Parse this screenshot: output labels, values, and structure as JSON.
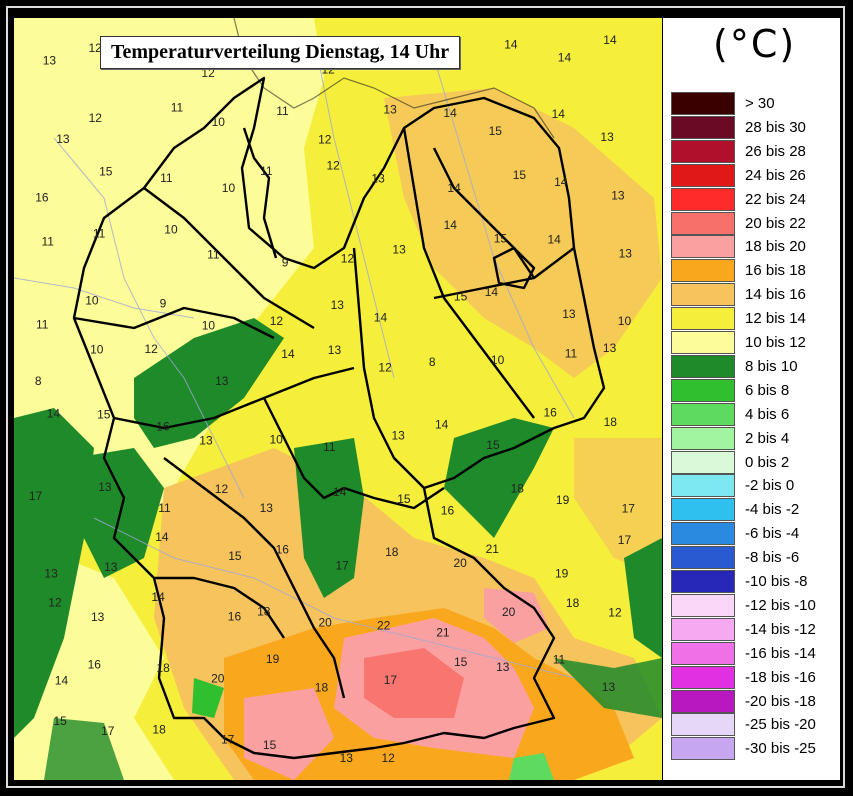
{
  "title": "Temperaturverteilung Dienstag, 14 Uhr",
  "legend": {
    "unit": "(°C)",
    "items": [
      {
        "label": "> 30",
        "color": "#3a0000"
      },
      {
        "label": "28 bis 30",
        "color": "#6b0a24"
      },
      {
        "label": "26 bis 28",
        "color": "#b0102a"
      },
      {
        "label": "24 bis 26",
        "color": "#e01818"
      },
      {
        "label": "22 bis 24",
        "color": "#ff2a2a"
      },
      {
        "label": "20 bis 22",
        "color": "#f8706a"
      },
      {
        "label": "18 bis 20",
        "color": "#fba0a0"
      },
      {
        "label": "16 bis 18",
        "color": "#f9a81e"
      },
      {
        "label": "14 bis 16",
        "color": "#f6c35c"
      },
      {
        "label": "12 bis 14",
        "color": "#f5ee3a"
      },
      {
        "label": "10 bis 12",
        "color": "#fcfc98"
      },
      {
        "label": "8 bis 10",
        "color": "#1f8a2a"
      },
      {
        "label": "6 bis 8",
        "color": "#2fbf2f"
      },
      {
        "label": "4 bis 6",
        "color": "#5edb5e"
      },
      {
        "label": "2 bis 4",
        "color": "#a2f5a0"
      },
      {
        "label": "0 bis 2",
        "color": "#d8fad8"
      },
      {
        "label": "-2 bis 0",
        "color": "#7ee8f0"
      },
      {
        "label": "-4 bis -2",
        "color": "#30c0f0"
      },
      {
        "label": "-6 bis -4",
        "color": "#2a8ae0"
      },
      {
        "label": "-8 bis -6",
        "color": "#2a5ad0"
      },
      {
        "label": "-10 bis -8",
        "color": "#2828b8"
      },
      {
        "label": "-12 bis -10",
        "color": "#fad6f8"
      },
      {
        "label": "-14 bis -12",
        "color": "#f6a8f0"
      },
      {
        "label": "-16 bis -14",
        "color": "#f070e8"
      },
      {
        "label": "-18 bis -16",
        "color": "#e030e0"
      },
      {
        "label": "-20 bis -18",
        "color": "#b818c0"
      },
      {
        "label": "-25 bis -20",
        "color": "#e6d6f8"
      },
      {
        "label": "-30 bis -25",
        "color": "#c6a6ee"
      }
    ]
  },
  "stations": [
    "13",
    "12",
    "13",
    "12",
    "11",
    "12",
    "11",
    "13",
    "14",
    "14",
    "14",
    "13",
    "12",
    "11",
    "10",
    "11",
    "12",
    "13",
    "14",
    "15",
    "14",
    "13",
    "16",
    "15",
    "11",
    "10",
    "11",
    "12",
    "13",
    "14",
    "15",
    "14",
    "13",
    "11",
    "11",
    "10",
    "11",
    "9",
    "12",
    "13",
    "14",
    "15",
    "14",
    "13",
    "11",
    "10",
    "9",
    "10",
    "12",
    "13",
    "14",
    "15",
    "14",
    "13",
    "10",
    "8",
    "10",
    "12",
    "13",
    "14",
    "13",
    "12",
    "8",
    "10",
    "11",
    "13",
    "14",
    "15",
    "16",
    "13",
    "10",
    "11",
    "13",
    "14",
    "15",
    "16",
    "18",
    "17",
    "13",
    "11",
    "12",
    "13",
    "14",
    "15",
    "16",
    "18",
    "19",
    "17",
    "13",
    "13",
    "14",
    "15",
    "16",
    "17",
    "18",
    "20",
    "21",
    "19",
    "17",
    "12",
    "13",
    "14",
    "16",
    "18",
    "20",
    "22",
    "21",
    "20",
    "18",
    "12",
    "14",
    "16",
    "18",
    "20",
    "19",
    "18",
    "17",
    "15",
    "13",
    "11",
    "13",
    "15",
    "17",
    "18",
    "17",
    "15",
    "13",
    "12"
  ]
}
